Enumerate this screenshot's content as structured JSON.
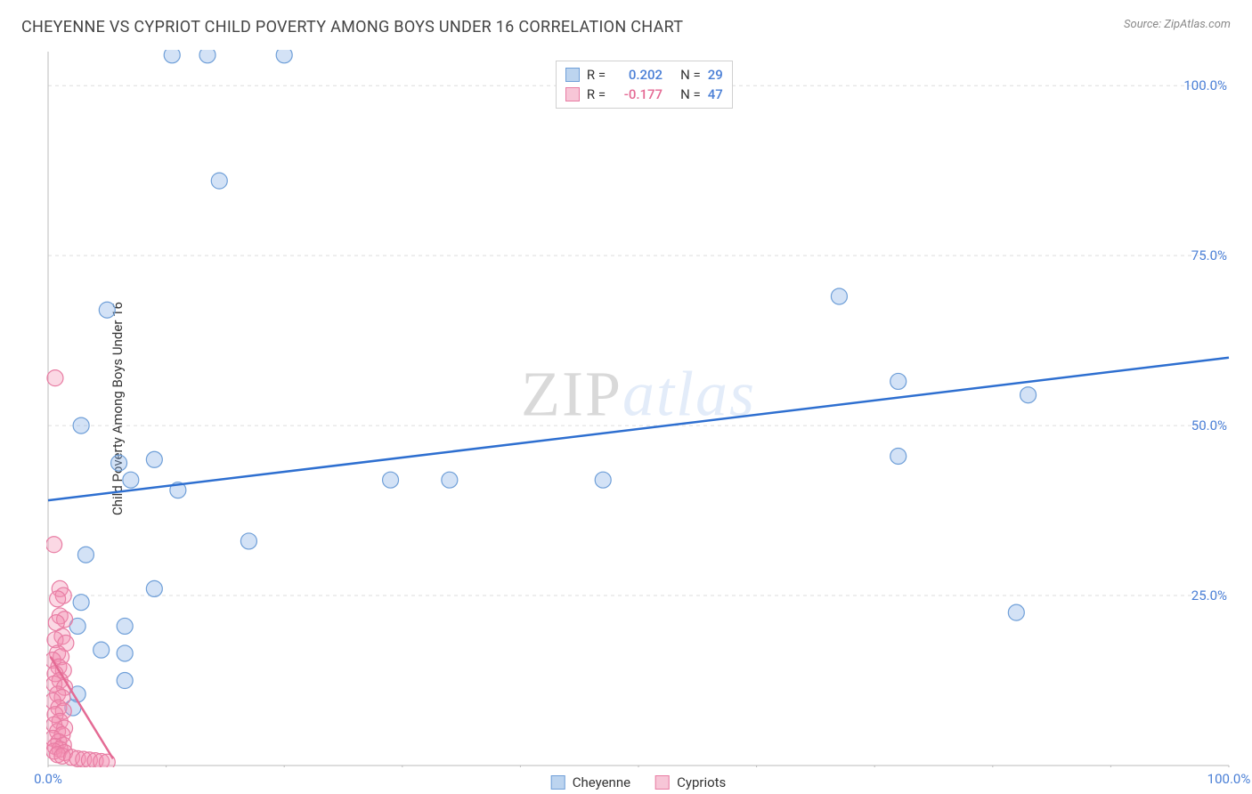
{
  "title": "CHEYENNE VS CYPRIOT CHILD POVERTY AMONG BOYS UNDER 16 CORRELATION CHART",
  "source": "Source: ZipAtlas.com",
  "ylabel": "Child Poverty Among Boys Under 16",
  "watermark_zip": "ZIP",
  "watermark_atlas": "atlas",
  "chart": {
    "type": "scatter",
    "background_color": "#ffffff",
    "grid_color": "#dedede",
    "axis_color": "#bbbbbb",
    "xlim": [
      0,
      100
    ],
    "ylim": [
      0,
      105
    ],
    "yticks": [
      25,
      50,
      75,
      100
    ],
    "ytick_labels": [
      "25.0%",
      "50.0%",
      "75.0%",
      "100.0%"
    ],
    "ytick_color": "#4a7fd6",
    "xticks": [
      0,
      10,
      20,
      30,
      40,
      50,
      60,
      70,
      80,
      90,
      100
    ],
    "x_end_labels": {
      "0": "0.0%",
      "100": "100.0%"
    },
    "xtick_color": "#4a7fd6",
    "marker_radius": 9,
    "marker_stroke_width": 1.2,
    "trend_line_width": 2.5
  },
  "series": [
    {
      "name": "Cheyenne",
      "fill": "rgba(128,172,230,0.35)",
      "stroke": "#6f9fd8",
      "legend_fill": "#bcd4ef",
      "legend_stroke": "#6f9fd8",
      "r_value": "0.202",
      "r_color": "#4a7fd6",
      "n_value": "29",
      "n_color": "#4a7fd6",
      "trend": {
        "x1": 0,
        "y1": 39,
        "x2": 100,
        "y2": 60,
        "color": "#2e6fd0"
      },
      "points": [
        [
          10.5,
          104.5
        ],
        [
          13.5,
          104.5
        ],
        [
          20,
          104.5
        ],
        [
          14.5,
          86
        ],
        [
          5,
          67
        ],
        [
          67,
          69
        ],
        [
          2.8,
          50
        ],
        [
          72,
          56.5
        ],
        [
          83,
          54.5
        ],
        [
          6,
          44.5
        ],
        [
          9,
          45
        ],
        [
          72,
          45.5
        ],
        [
          7,
          42
        ],
        [
          11,
          40.5
        ],
        [
          29,
          42
        ],
        [
          34,
          42
        ],
        [
          47,
          42
        ],
        [
          17,
          33
        ],
        [
          3.2,
          31
        ],
        [
          9,
          26
        ],
        [
          2.8,
          24
        ],
        [
          82,
          22.5
        ],
        [
          6.5,
          20.5
        ],
        [
          2.5,
          20.5
        ],
        [
          4.5,
          17
        ],
        [
          6.5,
          16.5
        ],
        [
          6.5,
          12.5
        ],
        [
          2.5,
          10.5
        ],
        [
          2.1,
          8.5
        ]
      ]
    },
    {
      "name": "Cypriots",
      "fill": "rgba(244,143,177,0.35)",
      "stroke": "#e87ca3",
      "legend_fill": "#f7c6d7",
      "legend_stroke": "#e87ca3",
      "r_value": "-0.177",
      "r_color": "#e46a94",
      "n_value": "47",
      "n_color": "#4a7fd6",
      "trend": {
        "x1": 0.2,
        "y1": 16,
        "x2": 5.5,
        "y2": 1,
        "color": "#e46a94"
      },
      "points": [
        [
          0.6,
          57
        ],
        [
          0.5,
          32.5
        ],
        [
          1.0,
          26
        ],
        [
          1.3,
          25
        ],
        [
          0.8,
          24.5
        ],
        [
          1.0,
          22
        ],
        [
          1.4,
          21.5
        ],
        [
          0.7,
          21
        ],
        [
          1.2,
          19
        ],
        [
          0.6,
          18.5
        ],
        [
          1.5,
          18
        ],
        [
          0.8,
          16.5
        ],
        [
          1.1,
          16
        ],
        [
          0.4,
          15.5
        ],
        [
          0.9,
          14.5
        ],
        [
          1.3,
          14
        ],
        [
          0.6,
          13.5
        ],
        [
          1.0,
          12.5
        ],
        [
          0.5,
          12
        ],
        [
          1.4,
          11.5
        ],
        [
          0.8,
          10.5
        ],
        [
          1.2,
          10
        ],
        [
          0.4,
          9.5
        ],
        [
          0.9,
          8.5
        ],
        [
          1.3,
          8
        ],
        [
          0.6,
          7.5
        ],
        [
          1.0,
          6.5
        ],
        [
          0.5,
          6
        ],
        [
          1.4,
          5.5
        ],
        [
          0.8,
          5
        ],
        [
          1.2,
          4.5
        ],
        [
          0.4,
          4
        ],
        [
          0.9,
          3.5
        ],
        [
          1.3,
          3
        ],
        [
          0.6,
          2.8
        ],
        [
          1.0,
          2.4
        ],
        [
          0.5,
          2.1
        ],
        [
          1.4,
          1.9
        ],
        [
          0.8,
          1.6
        ],
        [
          1.2,
          1.4
        ],
        [
          2.0,
          1.2
        ],
        [
          2.5,
          1.0
        ],
        [
          3.0,
          0.9
        ],
        [
          3.5,
          0.8
        ],
        [
          4.0,
          0.7
        ],
        [
          4.5,
          0.6
        ],
        [
          5.0,
          0.5
        ]
      ]
    }
  ],
  "legend_labels": {
    "r": "R  =",
    "n": "N  ="
  }
}
